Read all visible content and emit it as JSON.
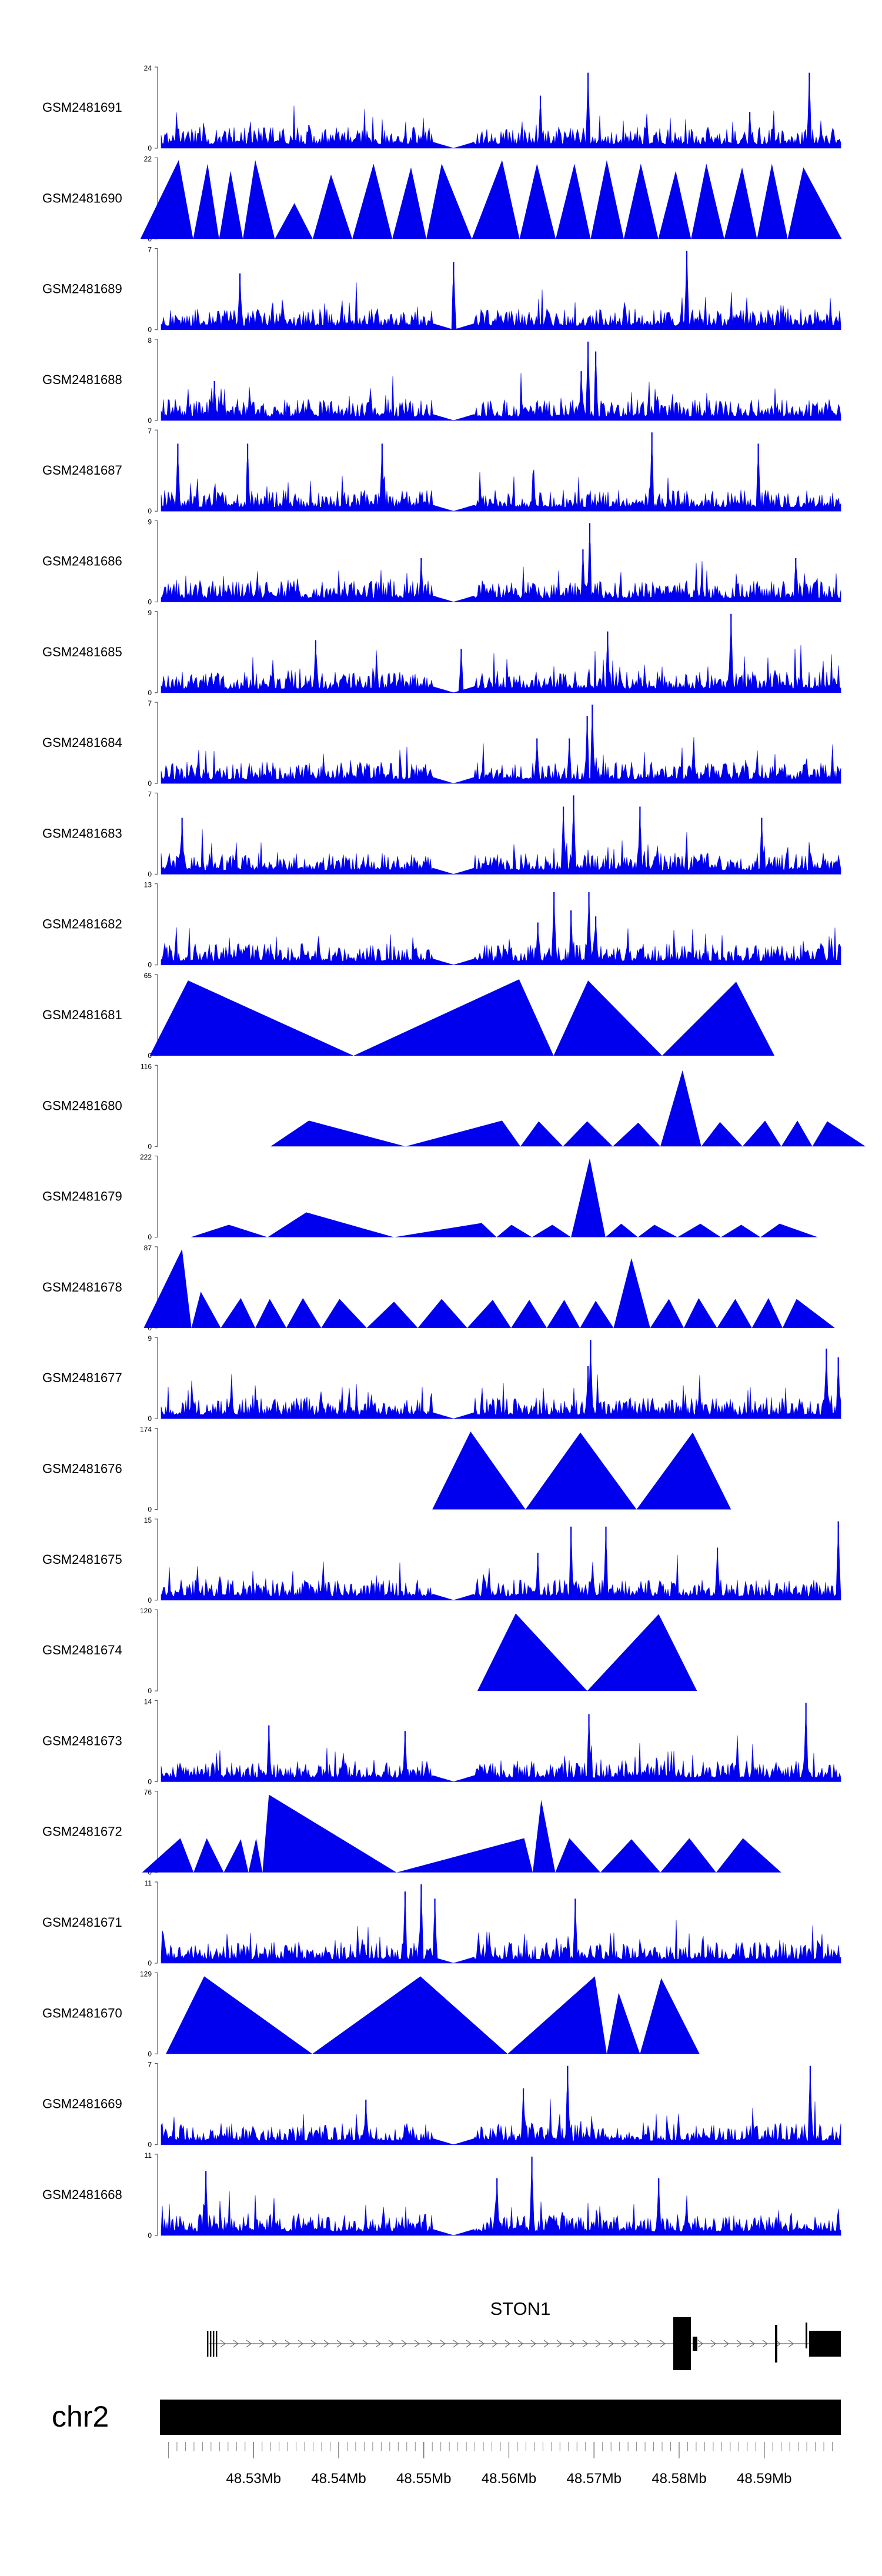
{
  "chart_data": {
    "type": "area",
    "genome": "chr2",
    "gene": "STON1",
    "xrange_mb": [
      48.519,
      48.599
    ],
    "x_ticks": [
      "48.53Mb",
      "48.54Mb",
      "48.55Mb",
      "48.56Mb",
      "48.57Mb",
      "48.58Mb",
      "48.59Mb"
    ],
    "x_tick_values_mb": [
      48.53,
      48.54,
      48.55,
      48.56,
      48.57,
      48.58,
      48.59
    ],
    "track_color": "#0000ee",
    "tracks": [
      {
        "name": "GSM2481691",
        "ymax": 24,
        "style": "dense",
        "seed": 1,
        "gap_mb": [
          48.551,
          48.556
        ],
        "peaks": [
          [
            48.5693,
            23
          ],
          [
            48.5637,
            16
          ],
          [
            48.5953,
            23
          ],
          [
            48.5883,
            11
          ],
          [
            48.5365,
            7
          ]
        ]
      },
      {
        "name": "GSM2481690",
        "ymax": 22,
        "style": "triangles",
        "seed": 2,
        "peaks": [
          [
            48.5212,
            22
          ],
          [
            48.5246,
            21
          ],
          [
            48.5273,
            19
          ],
          [
            48.5302,
            22
          ],
          [
            48.5348,
            10
          ],
          [
            48.5391,
            18
          ],
          [
            48.5441,
            21
          ],
          [
            48.5485,
            20
          ],
          [
            48.5521,
            21
          ],
          [
            48.5592,
            22
          ],
          [
            48.5633,
            21
          ],
          [
            48.5677,
            21
          ],
          [
            48.5715,
            22
          ],
          [
            48.5755,
            21
          ],
          [
            48.5796,
            19
          ],
          [
            48.5832,
            21
          ],
          [
            48.5874,
            20
          ],
          [
            48.5909,
            21
          ],
          [
            48.5946,
            20
          ]
        ]
      },
      {
        "name": "GSM2481689",
        "ymax": 7,
        "style": "dense",
        "seed": 3,
        "gap_mb": [
          48.551,
          48.556
        ],
        "peaks": [
          [
            48.5809,
            7
          ],
          [
            48.5535,
            6
          ],
          [
            48.5284,
            5
          ]
        ]
      },
      {
        "name": "GSM2481688",
        "ymax": 8,
        "style": "dense",
        "seed": 4,
        "gap_mb": [
          48.551,
          48.556
        ],
        "peaks": [
          [
            48.5693,
            8
          ],
          [
            48.5702,
            7
          ],
          [
            48.5685,
            5
          ],
          [
            48.5254,
            4
          ]
        ]
      },
      {
        "name": "GSM2481687",
        "ymax": 7,
        "style": "dense",
        "seed": 5,
        "gap_mb": [
          48.551,
          48.556
        ],
        "peaks": [
          [
            48.5211,
            6
          ],
          [
            48.5293,
            6
          ],
          [
            48.5451,
            6
          ],
          [
            48.5768,
            7
          ],
          [
            48.5893,
            6
          ]
        ]
      },
      {
        "name": "GSM2481686",
        "ymax": 9,
        "style": "dense",
        "seed": 6,
        "gap_mb": [
          48.551,
          48.556
        ],
        "peaks": [
          [
            48.5695,
            9
          ],
          [
            48.5687,
            6
          ],
          [
            48.5937,
            5
          ],
          [
            48.5497,
            5
          ]
        ]
      },
      {
        "name": "GSM2481685",
        "ymax": 9,
        "style": "dense",
        "seed": 7,
        "gap_mb": [
          48.551,
          48.556
        ],
        "peaks": [
          [
            48.5861,
            9
          ],
          [
            48.5716,
            7
          ],
          [
            48.5373,
            6
          ],
          [
            48.5544,
            5
          ]
        ]
      },
      {
        "name": "GSM2481684",
        "ymax": 7,
        "style": "dense",
        "seed": 8,
        "gap_mb": [
          48.551,
          48.556
        ],
        "peaks": [
          [
            48.5698,
            7
          ],
          [
            48.5692,
            6
          ],
          [
            48.5671,
            4
          ],
          [
            48.5633,
            4
          ]
        ]
      },
      {
        "name": "GSM2481683",
        "ymax": 7,
        "style": "dense",
        "seed": 9,
        "gap_mb": [
          48.551,
          48.556
        ],
        "peaks": [
          [
            48.5676,
            7
          ],
          [
            48.5664,
            6
          ],
          [
            48.5754,
            6
          ],
          [
            48.5216,
            5
          ],
          [
            48.5897,
            5
          ]
        ]
      },
      {
        "name": "GSM2481682",
        "ymax": 13,
        "style": "dense",
        "seed": 10,
        "gap_mb": [
          48.551,
          48.556
        ],
        "peaks": [
          [
            48.5653,
            12
          ],
          [
            48.5694,
            12
          ],
          [
            48.5673,
            9
          ],
          [
            48.5702,
            8
          ],
          [
            48.5634,
            7
          ]
        ]
      },
      {
        "name": "GSM2481681",
        "ymax": 65,
        "style": "triangles",
        "seed": 11,
        "peaks": [
          [
            48.5223,
            62
          ],
          [
            48.5612,
            63
          ],
          [
            48.5693,
            62
          ],
          [
            48.5867,
            61
          ]
        ]
      },
      {
        "name": "GSM2481680",
        "ymax": 116,
        "style": "triangles",
        "seed": 12,
        "peaks": [
          [
            48.5365,
            38
          ],
          [
            48.5592,
            38
          ],
          [
            48.5635,
            37
          ],
          [
            48.5692,
            37
          ],
          [
            48.5752,
            35
          ],
          [
            48.5804,
            112
          ],
          [
            48.5848,
            36
          ],
          [
            48.5901,
            38
          ],
          [
            48.5939,
            38
          ],
          [
            48.5974,
            37
          ]
        ]
      },
      {
        "name": "GSM2481679",
        "ymax": 222,
        "style": "triangles",
        "seed": 13,
        "peaks": [
          [
            48.5271,
            35
          ],
          [
            48.5362,
            70
          ],
          [
            48.5568,
            40
          ],
          [
            48.5603,
            35
          ],
          [
            48.5651,
            35
          ],
          [
            48.5695,
            222
          ],
          [
            48.5732,
            38
          ],
          [
            48.5771,
            35
          ],
          [
            48.5825,
            38
          ],
          [
            48.5873,
            35
          ],
          [
            48.5918,
            38
          ]
        ]
      },
      {
        "name": "GSM2481678",
        "ymax": 87,
        "style": "triangles",
        "seed": 14,
        "peaks": [
          [
            48.5216,
            87
          ],
          [
            48.5238,
            40
          ],
          [
            48.5285,
            33
          ],
          [
            48.5319,
            32
          ],
          [
            48.5358,
            33
          ],
          [
            48.5401,
            32
          ],
          [
            48.5465,
            29
          ],
          [
            48.5521,
            32
          ],
          [
            48.5581,
            31
          ],
          [
            48.5624,
            31
          ],
          [
            48.5665,
            31
          ],
          [
            48.5702,
            30
          ],
          [
            48.5744,
            77
          ],
          [
            48.5788,
            32
          ],
          [
            48.5823,
            33
          ],
          [
            48.5866,
            32
          ],
          [
            48.5905,
            33
          ],
          [
            48.5938,
            32
          ]
        ]
      },
      {
        "name": "GSM2481677",
        "ymax": 9,
        "style": "dense",
        "seed": 15,
        "gap_mb": [
          48.551,
          48.556
        ],
        "peaks": [
          [
            48.5696,
            9
          ],
          [
            48.5973,
            8
          ],
          [
            48.5987,
            7
          ],
          [
            48.5693,
            6
          ]
        ]
      },
      {
        "name": "GSM2481676",
        "ymax": 174,
        "style": "triangles",
        "seed": 16,
        "peaks": [
          [
            48.5555,
            172
          ],
          [
            48.5684,
            170
          ],
          [
            48.5816,
            170
          ]
        ]
      },
      {
        "name": "GSM2481675",
        "ymax": 15,
        "style": "dense",
        "seed": 17,
        "gap_mb": [
          48.551,
          48.556
        ],
        "peaks": [
          [
            48.5987,
            15
          ],
          [
            48.5673,
            14
          ],
          [
            48.5714,
            14
          ],
          [
            48.5634,
            9
          ],
          [
            48.5845,
            10
          ]
        ]
      },
      {
        "name": "GSM2481674",
        "ymax": 120,
        "style": "triangles",
        "seed": 18,
        "peaks": [
          [
            48.5608,
            118
          ],
          [
            48.5776,
            117
          ]
        ]
      },
      {
        "name": "GSM2481673",
        "ymax": 14,
        "style": "dense",
        "seed": 19,
        "gap_mb": [
          48.551,
          48.556
        ],
        "peaks": [
          [
            48.5949,
            14
          ],
          [
            48.5694,
            12
          ],
          [
            48.5318,
            10
          ],
          [
            48.5478,
            9
          ]
        ]
      },
      {
        "name": "GSM2481672",
        "ymax": 76,
        "style": "triangles",
        "seed": 20,
        "peaks": [
          [
            48.5214,
            33
          ],
          [
            48.5245,
            33
          ],
          [
            48.5285,
            32
          ],
          [
            48.5303,
            33
          ],
          [
            48.5318,
            75
          ],
          [
            48.5618,
            33
          ],
          [
            48.5638,
            70
          ],
          [
            48.5671,
            33
          ],
          [
            48.5744,
            32
          ],
          [
            48.5812,
            33
          ],
          [
            48.5875,
            33
          ]
        ]
      },
      {
        "name": "GSM2481671",
        "ymax": 11,
        "style": "dense",
        "seed": 21,
        "gap_mb": [
          48.551,
          48.556
        ],
        "peaks": [
          [
            48.5497,
            11
          ],
          [
            48.5478,
            10
          ],
          [
            48.5513,
            9
          ],
          [
            48.5678,
            9
          ]
        ]
      },
      {
        "name": "GSM2481670",
        "ymax": 129,
        "style": "triangles",
        "seed": 22,
        "peaks": [
          [
            48.5242,
            127
          ],
          [
            48.5496,
            127
          ],
          [
            48.5701,
            127
          ],
          [
            48.5729,
            100
          ],
          [
            48.5779,
            124
          ]
        ]
      },
      {
        "name": "GSM2481669",
        "ymax": 7,
        "style": "dense",
        "seed": 23,
        "gap_mb": [
          48.551,
          48.556
        ],
        "peaks": [
          [
            48.5669,
            7
          ],
          [
            48.5954,
            7
          ],
          [
            48.5617,
            5
          ],
          [
            48.5432,
            4
          ]
        ]
      },
      {
        "name": "GSM2481668",
        "ymax": 11,
        "style": "dense",
        "seed": 24,
        "gap_mb": [
          48.551,
          48.556
        ],
        "peaks": [
          [
            48.5627,
            11
          ],
          [
            48.5244,
            9
          ],
          [
            48.5586,
            8
          ],
          [
            48.5776,
            8
          ]
        ]
      }
    ]
  }
}
